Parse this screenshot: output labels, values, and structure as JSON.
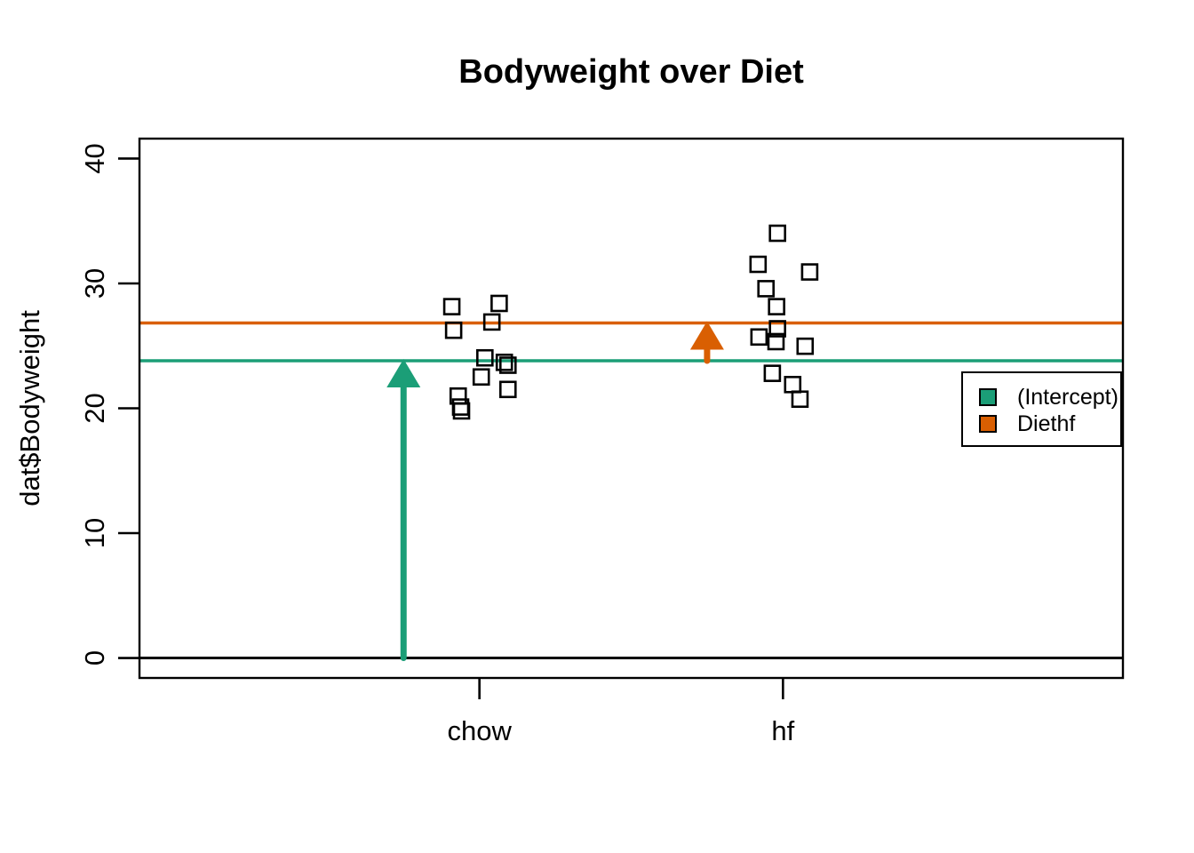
{
  "figure": {
    "title": "Bodyweight over Diet",
    "background": "#ffffff"
  },
  "chart_data": {
    "type": "scatter",
    "title": "Bodyweight over Diet",
    "xlabel": "",
    "ylabel": "dat$Bodyweight",
    "categories": [
      "chow",
      "hf"
    ],
    "category_x": [
      1,
      2
    ],
    "xlim": [
      -0.12,
      3.12
    ],
    "ylim": [
      -1.6,
      41.6
    ],
    "yticks": [
      0,
      10,
      20,
      30,
      40
    ],
    "grid": false,
    "point_style": {
      "shape": "open-square",
      "size": 17,
      "stroke": "#000000",
      "fill": "none"
    },
    "series": [
      {
        "name": "chow",
        "points": [
          {
            "x": 0.909,
            "y": 28.14
          },
          {
            "x": 1.065,
            "y": 28.4
          },
          {
            "x": 1.041,
            "y": 26.91
          },
          {
            "x": 0.915,
            "y": 26.25
          },
          {
            "x": 1.018,
            "y": 24.04
          },
          {
            "x": 1.082,
            "y": 23.68
          },
          {
            "x": 1.094,
            "y": 23.45
          },
          {
            "x": 1.006,
            "y": 22.51
          },
          {
            "x": 1.094,
            "y": 21.51
          },
          {
            "x": 0.93,
            "y": 20.98
          },
          {
            "x": 0.938,
            "y": 20.1
          },
          {
            "x": 0.941,
            "y": 19.79
          }
        ]
      },
      {
        "name": "hf",
        "points": [
          {
            "x": 1.982,
            "y": 34.02
          },
          {
            "x": 1.918,
            "y": 31.53
          },
          {
            "x": 2.088,
            "y": 30.92
          },
          {
            "x": 1.944,
            "y": 29.58
          },
          {
            "x": 1.979,
            "y": 28.14
          },
          {
            "x": 1.982,
            "y": 26.37
          },
          {
            "x": 1.921,
            "y": 25.71
          },
          {
            "x": 1.977,
            "y": 25.34
          },
          {
            "x": 2.073,
            "y": 24.97
          },
          {
            "x": 1.965,
            "y": 22.8
          },
          {
            "x": 2.032,
            "y": 21.9
          },
          {
            "x": 2.056,
            "y": 20.73
          }
        ]
      }
    ],
    "hlines": [
      {
        "name": "zero-line",
        "y": 0,
        "color": "#000000",
        "width": 3
      },
      {
        "name": "intercept-line",
        "y": 23.81,
        "color": "#1B9E77",
        "width": 3.5
      },
      {
        "name": "diethf-line",
        "y": 26.83,
        "color": "#D95F02",
        "width": 3.5
      }
    ],
    "arrows": [
      {
        "name": "intercept-arrow",
        "x": 0.75,
        "from": 0,
        "to": 23.81,
        "color": "#1B9E77"
      },
      {
        "name": "diethf-arrow",
        "x": 1.75,
        "from": 23.81,
        "to": 26.83,
        "color": "#D95F02"
      }
    ],
    "legend": {
      "position": "right",
      "entries": [
        {
          "label": "(Intercept)",
          "color": "#1B9E77"
        },
        {
          "label": "Diethf",
          "color": "#D95F02"
        }
      ]
    },
    "colors": {
      "intercept": "#1B9E77",
      "diethf": "#D95F02",
      "axis": "#000000"
    }
  }
}
